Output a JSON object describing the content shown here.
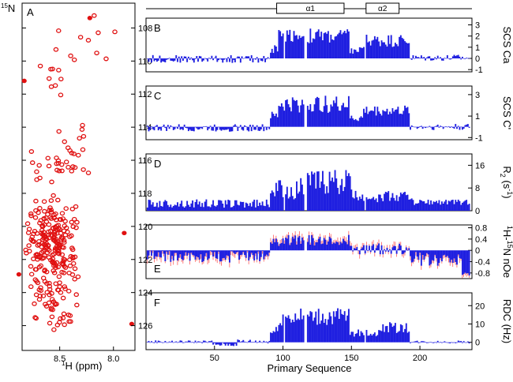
{
  "colors": {
    "bar": "#1f1fe0",
    "error": "#ff5c5c",
    "peak": "#e01010",
    "axis": "#000000"
  },
  "chart_data": [
    {
      "id": "A",
      "type": "scatter",
      "label": "A",
      "ylabel_sup": "15",
      "ylabel_rest": "N",
      "xlabel_sup": "1",
      "xlabel_rest": "H (ppm)",
      "xlim": [
        8.85,
        7.8
      ],
      "ylim": [
        106.5,
        127.5
      ],
      "xticks": [
        "8.5",
        "8.0"
      ],
      "xtick_values": [
        8.5,
        8.0
      ],
      "yticks": [
        "108",
        "110",
        "112",
        "114",
        "116",
        "118",
        "120",
        "122",
        "124",
        "126"
      ],
      "ytick_values": [
        108,
        110,
        112,
        114,
        116,
        118,
        120,
        122,
        124,
        126
      ]
    },
    {
      "id": "B",
      "type": "bar",
      "label": "B",
      "ylabel": "SCS Ca",
      "ylim": [
        -1.2,
        3.6
      ],
      "yticks": [
        "3",
        "2",
        "1",
        "0",
        "-1"
      ],
      "ytick_values": [
        3,
        2,
        1,
        0,
        -1
      ],
      "segments": [
        {
          "x0": 1,
          "x1": 90,
          "level": -0.05,
          "amp": 0.35
        },
        {
          "x0": 91,
          "x1": 96,
          "level": 0.8,
          "amp": 0.5
        },
        {
          "x0": 97,
          "x1": 112,
          "level": 2.1,
          "amp": 0.6
        },
        {
          "x0": 113,
          "x1": 148,
          "level": 2.0,
          "amp": 0.7
        },
        {
          "x0": 149,
          "x1": 158,
          "level": 0.7,
          "amp": 0.4
        },
        {
          "x0": 159,
          "x1": 192,
          "level": 1.6,
          "amp": 0.6
        },
        {
          "x0": 193,
          "x1": 236,
          "level": 0.05,
          "amp": 0.3
        }
      ],
      "gaps": [
        101,
        116,
        117,
        160
      ]
    },
    {
      "id": "C",
      "type": "bar",
      "label": "C",
      "ylabel": "SCS C'",
      "ylim": [
        -1.2,
        3.8
      ],
      "yticks": [
        "3",
        "1",
        "-1"
      ],
      "ytick_values": [
        3,
        1,
        -1
      ],
      "segments": [
        {
          "x0": 1,
          "x1": 90,
          "level": -0.1,
          "amp": 0.35
        },
        {
          "x0": 91,
          "x1": 96,
          "level": 1.0,
          "amp": 0.4
        },
        {
          "x0": 97,
          "x1": 148,
          "level": 2.1,
          "amp": 0.8
        },
        {
          "x0": 149,
          "x1": 158,
          "level": 0.8,
          "amp": 0.4
        },
        {
          "x0": 159,
          "x1": 192,
          "level": 1.5,
          "amp": 0.5
        },
        {
          "x0": 193,
          "x1": 236,
          "level": 0.0,
          "amp": 0.3
        }
      ],
      "gaps": [
        116,
        117
      ]
    },
    {
      "id": "D",
      "type": "bar",
      "label": "D",
      "ylabel_main": "R",
      "ylabel_sub": "2",
      "ylabel_rest": " (s",
      "ylabel_sup": "-1",
      "ylabel_end": ")",
      "ylim": [
        0,
        20
      ],
      "yticks": [
        "16",
        "8",
        "0"
      ],
      "ytick_values": [
        16,
        8,
        0
      ],
      "segments": [
        {
          "x0": 1,
          "x1": 90,
          "level": 2.5,
          "amp": 1.5
        },
        {
          "x0": 91,
          "x1": 112,
          "level": 7.5,
          "amp": 3.5
        },
        {
          "x0": 113,
          "x1": 150,
          "level": 10.0,
          "amp": 4.5
        },
        {
          "x0": 151,
          "x1": 195,
          "level": 5.0,
          "amp": 2.0
        },
        {
          "x0": 196,
          "x1": 236,
          "level": 3.0,
          "amp": 1.0
        }
      ],
      "gaps": [
        101,
        116,
        117,
        160
      ]
    },
    {
      "id": "E",
      "type": "bar",
      "label": "E",
      "ylabel_sup1": "1",
      "ylabel_mid": "H-",
      "ylabel_sup2": "15",
      "ylabel_rest": "N nOe",
      "ylim": [
        -1.0,
        0.9
      ],
      "yticks": [
        "0.8",
        "0.4",
        "0",
        "-0.4",
        "-0.8"
      ],
      "ytick_values": [
        0.8,
        0.4,
        0,
        -0.4,
        -0.8
      ],
      "errorbars": true,
      "segments": [
        {
          "x0": 1,
          "x1": 90,
          "level": -0.22,
          "amp": 0.22
        },
        {
          "x0": 91,
          "x1": 150,
          "level": 0.35,
          "amp": 0.2
        },
        {
          "x0": 151,
          "x1": 192,
          "level": 0.05,
          "amp": 0.2
        },
        {
          "x0": 193,
          "x1": 230,
          "level": -0.3,
          "amp": 0.25
        },
        {
          "x0": 231,
          "x1": 236,
          "level": -0.85,
          "amp": 0.1
        }
      ],
      "gaps": [
        116,
        117
      ]
    },
    {
      "id": "F",
      "type": "bar",
      "label": "F",
      "ylabel": "RDC (Hz)",
      "ylim": [
        -4,
        27
      ],
      "yticks": [
        "20",
        "10",
        "0"
      ],
      "ytick_values": [
        20,
        10,
        0
      ],
      "xlabel": "Primary Sequence",
      "xticks": [
        "50",
        "100",
        "150",
        "200"
      ],
      "xtick_values": [
        50,
        100,
        150,
        200
      ],
      "xlim": [
        0,
        238
      ],
      "segments": [
        {
          "x0": 1,
          "x1": 48,
          "level": 0.3,
          "amp": 0.8
        },
        {
          "x0": 49,
          "x1": 66,
          "level": -1.2,
          "amp": 1.0
        },
        {
          "x0": 67,
          "x1": 90,
          "level": 0.5,
          "amp": 1.2
        },
        {
          "x0": 91,
          "x1": 96,
          "level": 6.0,
          "amp": 3.0
        },
        {
          "x0": 97,
          "x1": 148,
          "level": 14.0,
          "amp": 5.0
        },
        {
          "x0": 149,
          "x1": 170,
          "level": 5.0,
          "amp": 2.0
        },
        {
          "x0": 171,
          "x1": 192,
          "level": 8.0,
          "amp": 3.0
        },
        {
          "x0": 193,
          "x1": 236,
          "level": 0.2,
          "amp": 0.8
        }
      ],
      "gaps": [
        101,
        116,
        117,
        160
      ]
    }
  ],
  "secondary_structure": {
    "range": [
      1,
      238
    ],
    "helices": [
      {
        "label": "α1",
        "start": 96,
        "end": 145
      },
      {
        "label": "α2",
        "start": 161,
        "end": 185
      }
    ]
  }
}
